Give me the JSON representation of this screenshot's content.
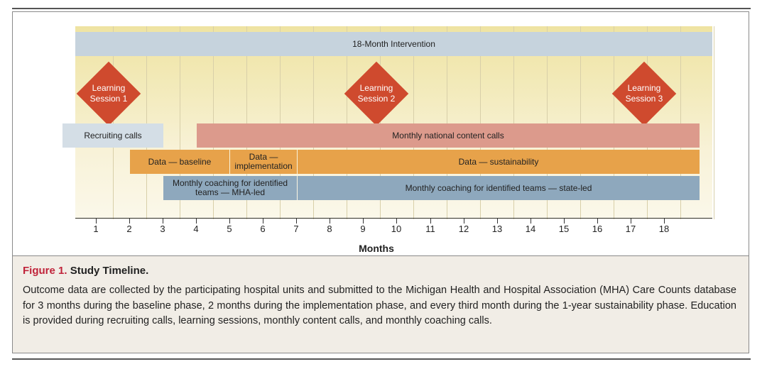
{
  "figure": {
    "label": "Figure 1.",
    "title": "Study Timeline.",
    "caption": "Outcome data are collected by the participating hospital units and submitted to the Michigan Health and Hospital Association (MHA) Care Counts database for 3 months during the baseline phase, 2 months during the implementation phase, and every third month during the 1-year sustainability phase. Education is provided during recruiting calls, learning sessions, monthly content calls, and monthly coaching calls."
  },
  "timeline": {
    "intervention": "18-Month Intervention",
    "sessions": [
      {
        "line1": "Learning",
        "line2": "Session 1",
        "month": 1
      },
      {
        "line1": "Learning",
        "line2": "Session 2",
        "month": 9
      },
      {
        "line1": "Learning",
        "line2": "Session 3",
        "month": 17
      }
    ],
    "recruiting": "Recruiting calls",
    "national": "Monthly national content calls",
    "data_baseline": "Data — baseline",
    "data_impl_line1": "Data —",
    "data_impl_line2": "implementation",
    "data_sustain": "Data — sustainability",
    "coaching_mha_line1": "Monthly coaching for identified",
    "coaching_mha_line2": "teams — MHA-led",
    "coaching_state": "Monthly coaching for identified teams — state-led",
    "months": [
      "1",
      "2",
      "3",
      "4",
      "5",
      "6",
      "7",
      "8",
      "9",
      "10",
      "11",
      "12",
      "13",
      "14",
      "15",
      "16",
      "17",
      "18"
    ],
    "axis_label": "Months"
  },
  "colors": {
    "diamond": "#cf4a2e",
    "intervention": "#c6d3dd",
    "recruiting": "#d4dee6",
    "national": "#dc9a8c",
    "data": "#e7a24a",
    "coaching": "#8ea8bd",
    "figure_label": "#c0233a"
  }
}
